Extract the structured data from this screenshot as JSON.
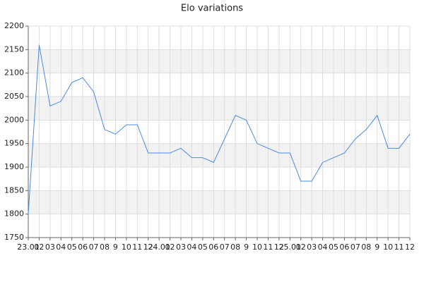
{
  "chart_data": {
    "type": "line",
    "title": "Elo variations",
    "categories": [
      "23.01",
      "02",
      "03",
      "04",
      "05",
      "06",
      "07",
      "08",
      "9",
      "10",
      "11",
      "12",
      "24.01",
      "02",
      "03",
      "04",
      "05",
      "06",
      "07",
      "08",
      "9",
      "10",
      "11",
      "12",
      "25.01",
      "02",
      "03",
      "04",
      "05",
      "06",
      "07",
      "08",
      "9",
      "10",
      "11",
      "12"
    ],
    "series": [
      {
        "name": "Elo",
        "color": "#4a8ae0",
        "values": [
          1800,
          2160,
          2030,
          2040,
          2080,
          2090,
          2060,
          1980,
          1970,
          1990,
          1990,
          1930,
          1930,
          1930,
          1940,
          1920,
          1920,
          1910,
          1960,
          2010,
          2000,
          1950,
          1940,
          1930,
          1930,
          1870,
          1870,
          1910,
          1920,
          1930,
          1960,
          1980,
          2010,
          1940,
          1940,
          1970
        ]
      }
    ],
    "ylim": [
      1750,
      2200
    ],
    "yticks": [
      1750,
      1800,
      1850,
      1900,
      1950,
      2000,
      2050,
      2100,
      2150,
      2200
    ],
    "grid": true
  }
}
